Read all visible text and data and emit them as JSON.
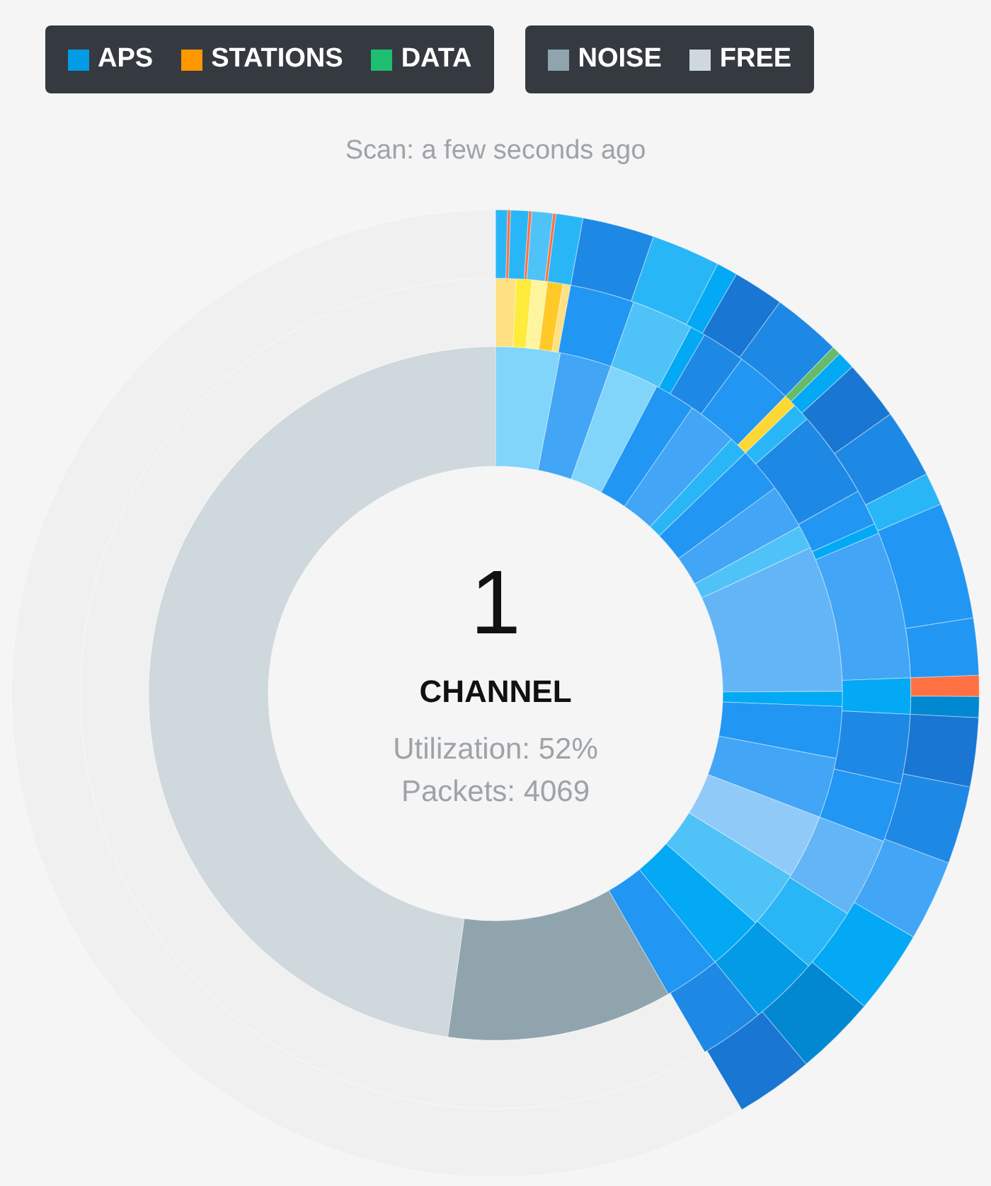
{
  "chart_data": {
    "type": "donut",
    "subtitle": "Scan: a few seconds ago",
    "annotations": [
      "1",
      "CHANNEL",
      "Utilization: 52%",
      "Packets: 4069",
      "APS",
      "STATIONS",
      "DATA",
      "NOISE",
      "FREE"
    ],
    "series": [
      {
        "values": [
          0.4,
          0.1,
          0.6,
          0.1,
          0.7,
          0.1,
          0.9,
          2.4,
          2.3,
          0.7,
          1.7,
          2.3,
          0.3,
          0.6,
          2.0,
          2.3,
          1.1,
          3.9,
          1.9,
          0.7,
          0.7,
          2.3,
          2.6,
          2.7,
          2.8,
          2.7,
          2.6,
          58.5
        ],
        "colors": [
          "#29b6f6",
          "#ff7043",
          "#29b6f6",
          "#ff7043",
          "#4fc3f7",
          "#ff7043",
          "#29b6f6",
          "#1e88e5",
          "#29b6f6",
          "#03a9f4",
          "#1976d2",
          "#1e88e5",
          "#66bb6a",
          "#03a9f4",
          "#1976d2",
          "#1e88e5",
          "#29b6f6",
          "#2196f3",
          "#2196f3",
          "#ff7043",
          "#0288d1",
          "#1976d2",
          "#1e88e5",
          "#42a5f5",
          "#03a9f4",
          "#0288d1",
          "#1976d2",
          "#f0f0f0"
        ]
      },
      {
        "values": [
          0.8,
          0.6,
          0.6,
          0.6,
          0.3,
          2.5,
          2.4,
          0.6,
          1.7,
          2.2,
          0.5,
          0.7,
          3.4,
          1.4,
          0.4,
          5.7,
          1.4,
          2.7,
          2.3,
          3.1,
          2.5,
          2.7,
          2.5,
          58.4
        ],
        "colors": [
          "#ffe082",
          "#ffeb3b",
          "#fff59d",
          "#ffca28",
          "#ffe082",
          "#2196f3",
          "#4fc3f7",
          "#03a9f4",
          "#1e88e5",
          "#2196f3",
          "#fdd835",
          "#29b6f6",
          "#1e88e5",
          "#2196f3",
          "#03a9f4",
          "#42a5f5",
          "#03a9f4",
          "#1e88e5",
          "#2196f3",
          "#64b5f6",
          "#29b6f6",
          "#039be5",
          "#1e88e5",
          "#f0f0f0"
        ]
      },
      {
        "values": [
          3.0,
          2.4,
          2.3,
          1.9,
          2.3,
          0.9,
          2.1,
          2.1,
          1.1,
          6.8,
          0.7,
          2.4,
          2.8,
          3.0,
          2.7,
          2.6,
          2.6,
          10.5,
          47.8
        ],
        "colors": [
          "#81d4fa",
          "#42a5f5",
          "#81d4fa",
          "#2196f3",
          "#42a5f5",
          "#29b6f6",
          "#2196f3",
          "#42a5f5",
          "#4fc3f7",
          "#64b5f6",
          "#03a9f4",
          "#2196f3",
          "#42a5f5",
          "#90caf9",
          "#4fc3f7",
          "#03a9f4",
          "#2196f3",
          "#90a4ae",
          "#cfd8dc"
        ]
      }
    ]
  }
}
